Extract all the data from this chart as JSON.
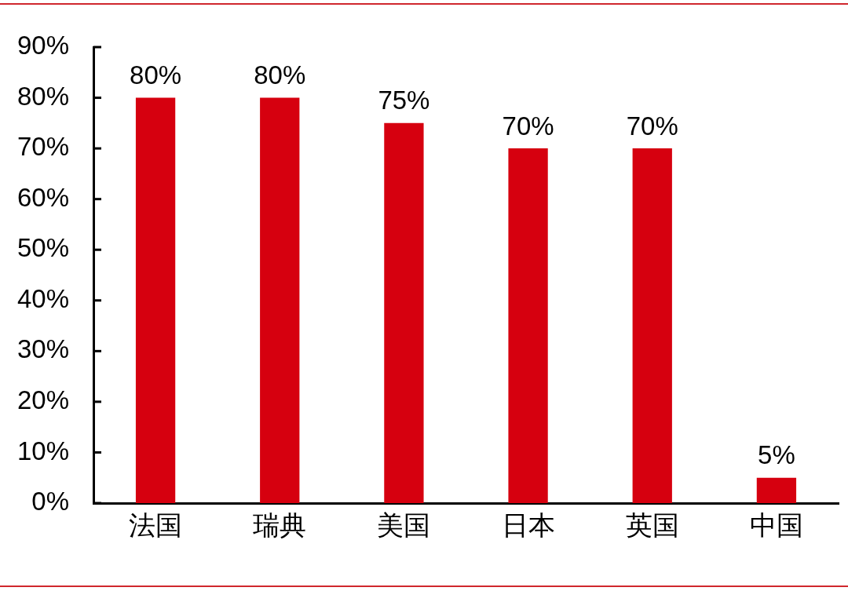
{
  "chart_data": {
    "type": "bar",
    "categories": [
      "法国",
      "瑞典",
      "美国",
      "日本",
      "英国",
      "中国"
    ],
    "values": [
      80,
      80,
      75,
      70,
      70,
      5
    ],
    "color": "#d6000f",
    "value_labels": [
      "80%",
      "80%",
      "75%",
      "70%",
      "70%",
      "5%"
    ],
    "ylim": [
      0,
      90
    ],
    "yticks": [
      {
        "value": 0,
        "label": "0%"
      },
      {
        "value": 10,
        "label": "10%"
      },
      {
        "value": 20,
        "label": "20%"
      },
      {
        "value": 30,
        "label": "30%"
      },
      {
        "value": 40,
        "label": "40%"
      },
      {
        "value": 50,
        "label": "50%"
      },
      {
        "value": 60,
        "label": "60%"
      },
      {
        "value": 70,
        "label": "70%"
      },
      {
        "value": 80,
        "label": "80%"
      },
      {
        "value": 90,
        "label": "90%"
      }
    ]
  }
}
